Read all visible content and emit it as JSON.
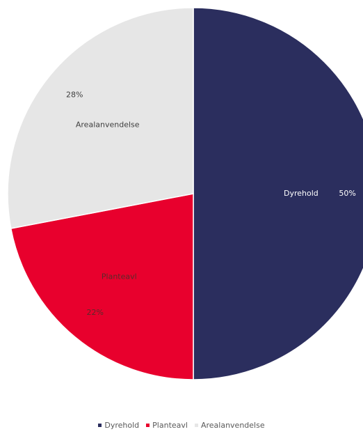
{
  "chart_data": {
    "type": "pie",
    "categories": [
      "Dyrehold",
      "Planteavl",
      "Arealanvendelse"
    ],
    "values": [
      50,
      22,
      28
    ],
    "labels": [
      "Dyrehold",
      "Planteavl",
      "Arealanvendelse"
    ],
    "percent_labels": [
      "50%",
      "22%",
      "28%"
    ],
    "colors": [
      "#2b2e5e",
      "#e8002d",
      "#e6e6e6"
    ],
    "label_colors": [
      "#ffffff",
      "#5a2a2a",
      "#404040"
    ],
    "title": "",
    "start_angle_deg": 0,
    "direction": "clockwise",
    "legend": {
      "position": "bottom",
      "entries": [
        "Dyrehold",
        "Planteavl",
        "Arealanvendelse"
      ]
    }
  }
}
